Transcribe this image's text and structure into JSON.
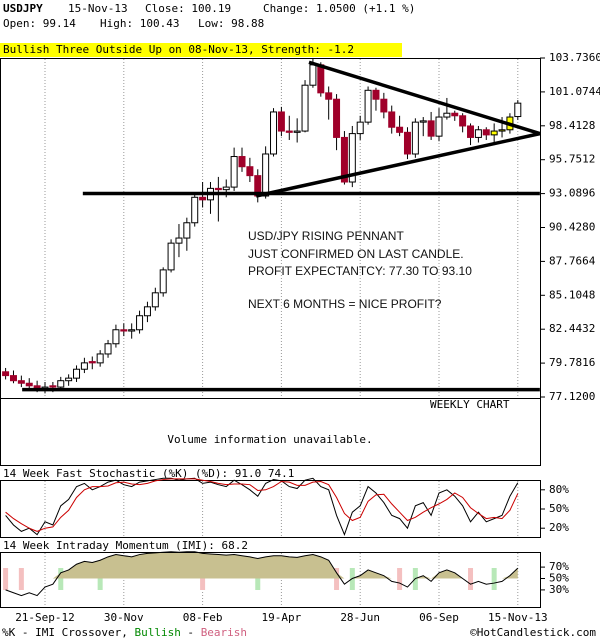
{
  "header": {
    "symbol": "USDJPY",
    "date": "15-Nov-13",
    "close": "Close: 100.19",
    "change": "Change: 1.0500 (+1.1 %)",
    "open": "Open: 99.14",
    "high": "High: 100.43",
    "low": "Low: 98.88"
  },
  "banner": "Bullish Three Outside Up on 08-Nov-13, Strength: -1.2",
  "chart_data": {
    "type": "candlestick",
    "categories": [
      null,
      null,
      null,
      null,
      null,
      "21-Sep-12",
      null,
      null,
      null,
      null,
      null,
      null,
      null,
      null,
      null,
      "30-Nov",
      null,
      null,
      null,
      null,
      null,
      null,
      null,
      null,
      null,
      "08-Feb",
      null,
      null,
      null,
      null,
      null,
      null,
      null,
      null,
      null,
      "19-Apr",
      null,
      null,
      null,
      null,
      null,
      null,
      null,
      null,
      null,
      "28-Jun",
      null,
      null,
      null,
      null,
      null,
      null,
      null,
      null,
      null,
      "06-Sep",
      null,
      null,
      null,
      null,
      null,
      null,
      null,
      null,
      null,
      "15-Nov-13"
    ],
    "candles": [
      [
        79.1,
        79.4,
        78.5,
        78.8
      ],
      [
        78.8,
        79.2,
        78.2,
        78.4
      ],
      [
        78.4,
        78.8,
        77.9,
        78.2
      ],
      [
        78.2,
        78.6,
        77.7,
        78.0
      ],
      [
        78.0,
        78.4,
        77.5,
        77.8
      ],
      [
        77.8,
        78.3,
        77.4,
        77.9
      ],
      [
        78.0,
        78.3,
        77.5,
        77.9
      ],
      [
        77.9,
        78.7,
        77.7,
        78.4
      ],
      [
        78.4,
        78.9,
        78.0,
        78.6
      ],
      [
        78.6,
        79.6,
        78.3,
        79.3
      ],
      [
        79.3,
        80.2,
        79.0,
        79.8
      ],
      [
        79.9,
        80.3,
        79.3,
        79.8
      ],
      [
        79.8,
        80.8,
        79.5,
        80.5
      ],
      [
        80.5,
        81.6,
        80.2,
        81.3
      ],
      [
        81.3,
        82.8,
        81.0,
        82.4
      ],
      [
        82.4,
        82.9,
        81.9,
        82.3
      ],
      [
        82.3,
        82.9,
        81.7,
        82.4
      ],
      [
        82.4,
        83.9,
        82.1,
        83.5
      ],
      [
        83.5,
        84.6,
        83.0,
        84.2
      ],
      [
        84.2,
        85.7,
        83.9,
        85.3
      ],
      [
        85.3,
        87.3,
        85.0,
        87.1
      ],
      [
        87.1,
        89.5,
        86.9,
        89.2
      ],
      [
        89.2,
        90.7,
        88.1,
        89.6
      ],
      [
        89.6,
        91.2,
        88.6,
        90.8
      ],
      [
        90.8,
        93.2,
        90.5,
        92.8
      ],
      [
        92.8,
        94.0,
        92.0,
        92.6
      ],
      [
        92.6,
        94.0,
        91.5,
        93.5
      ],
      [
        93.5,
        94.4,
        90.9,
        93.4
      ],
      [
        93.4,
        94.2,
        92.8,
        93.6
      ],
      [
        93.6,
        96.7,
        93.3,
        96.0
      ],
      [
        96.0,
        96.7,
        94.8,
        95.2
      ],
      [
        95.2,
        95.9,
        94.0,
        94.5
      ],
      [
        94.5,
        95.0,
        92.4,
        92.9
      ],
      [
        92.9,
        96.8,
        92.7,
        96.2
      ],
      [
        96.2,
        99.8,
        96.0,
        99.5
      ],
      [
        99.5,
        99.9,
        97.6,
        98.0
      ],
      [
        98.0,
        99.2,
        97.3,
        97.9
      ],
      [
        97.9,
        99.0,
        97.1,
        98.0
      ],
      [
        98.0,
        102.0,
        97.9,
        101.6
      ],
      [
        101.6,
        103.74,
        101.4,
        103.2
      ],
      [
        103.2,
        103.4,
        100.7,
        101.0
      ],
      [
        101.0,
        101.5,
        98.9,
        100.5
      ],
      [
        100.5,
        100.9,
        96.5,
        97.5
      ],
      [
        97.5,
        98.0,
        93.8,
        94.0
      ],
      [
        94.0,
        98.4,
        93.6,
        97.8
      ],
      [
        97.8,
        99.2,
        97.3,
        98.7
      ],
      [
        98.7,
        101.5,
        98.5,
        101.2
      ],
      [
        101.2,
        101.4,
        99.6,
        100.5
      ],
      [
        100.5,
        101.0,
        99.0,
        99.5
      ],
      [
        99.5,
        100.0,
        97.8,
        98.3
      ],
      [
        98.3,
        99.2,
        97.6,
        97.9
      ],
      [
        97.9,
        98.3,
        95.8,
        96.2
      ],
      [
        96.2,
        99.0,
        95.9,
        98.7
      ],
      [
        98.7,
        99.1,
        97.6,
        98.8
      ],
      [
        98.8,
        99.5,
        97.3,
        97.6
      ],
      [
        97.6,
        99.8,
        97.2,
        99.1
      ],
      [
        99.1,
        100.6,
        98.9,
        99.4
      ],
      [
        99.4,
        99.6,
        98.8,
        99.2
      ],
      [
        99.2,
        99.4,
        97.9,
        98.4
      ],
      [
        98.4,
        98.6,
        96.9,
        97.5
      ],
      [
        97.5,
        98.4,
        97.1,
        98.1
      ],
      [
        98.1,
        98.3,
        97.3,
        97.7
      ],
      [
        97.7,
        98.6,
        96.9,
        98.0
      ],
      [
        98.0,
        99.1,
        97.5,
        98.1
      ],
      [
        98.1,
        99.4,
        97.8,
        99.1
      ],
      [
        99.14,
        100.43,
        98.88,
        100.19
      ]
    ],
    "up_color": "#ffffff",
    "down_color": "#a0002a",
    "pattern_color": "#ffff00",
    "pattern_candles": [
      62,
      63,
      64
    ],
    "ylim": [
      77.12,
      103.736
    ],
    "yticks": [
      {
        "value": 103.736,
        "label": "103.7360"
      },
      101.0744,
      98.4128,
      95.7512,
      93.0896,
      {
        "value": 90.428,
        "label": "90.4280"
      },
      87.7664,
      85.1048,
      82.4432,
      79.7816,
      {
        "value": 77.12,
        "label": "77.1200"
      }
    ],
    "trendlines": [
      {
        "x": [
          38.5,
          67.8
        ],
        "y": [
          103.4,
          97.8
        ]
      },
      {
        "x": [
          31.8,
          67.8
        ],
        "y": [
          92.9,
          97.8
        ]
      },
      {
        "x": [
          9.8,
          67.8
        ],
        "y": [
          93.1,
          93.1
        ]
      },
      {
        "x": [
          2.1,
          67.8
        ],
        "y": [
          77.7,
          77.7
        ]
      }
    ],
    "annotations": [
      "USD/JPY RISING PENNANT",
      "JUST CONFIRMED ON LAST CANDLE.",
      "PROFIT EXPECTANTCY: 77.30 TO 93.10",
      "NEXT 6 MONTHS = NICE PROFIT?"
    ],
    "period_label": "WEEKLY CHART",
    "volume_note": "Volume information unavailable.",
    "stochastic": {
      "title": "14 Week Fast Stochastic (%K) (%D): 91.0 74.1",
      "ylim": [
        0,
        100
      ],
      "yticks": [
        {
          "value": 80,
          "label": "80%"
        },
        {
          "value": 50,
          "label": "50%"
        },
        {
          "value": 20,
          "label": "20%"
        }
      ],
      "series": [
        {
          "color": "#000000",
          "values": [
            40,
            25,
            15,
            20,
            10,
            30,
            25,
            55,
            65,
            85,
            90,
            80,
            85,
            92,
            95,
            88,
            85,
            92,
            94,
            96,
            98,
            98,
            95,
            97,
            98,
            90,
            92,
            88,
            85,
            95,
            88,
            80,
            70,
            90,
            96,
            94,
            85,
            82,
            95,
            98,
            85,
            80,
            40,
            10,
            45,
            55,
            85,
            75,
            60,
            40,
            35,
            20,
            55,
            60,
            40,
            75,
            80,
            70,
            55,
            30,
            45,
            30,
            35,
            40,
            70,
            91.0
          ]
        },
        {
          "color": "#cc0000",
          "values": [
            45,
            35,
            27,
            20,
            15,
            20,
            22,
            37,
            48,
            68,
            80,
            85,
            85,
            86,
            91,
            92,
            89,
            88,
            90,
            94,
            96,
            97,
            97,
            97,
            97,
            95,
            93,
            90,
            88,
            89,
            89,
            88,
            79,
            80,
            85,
            93,
            92,
            87,
            87,
            92,
            93,
            88,
            68,
            43,
            32,
            37,
            62,
            72,
            73,
            58,
            45,
            32,
            37,
            45,
            52,
            58,
            65,
            75,
            68,
            52,
            43,
            35,
            37,
            35,
            48,
            74.1
          ]
        }
      ]
    },
    "imi": {
      "title": "14 Week Intraday Momentum (IMI): 68.2",
      "ylim": [
        0,
        100
      ],
      "color": "#c8c090",
      "yticks": [
        {
          "value": 70,
          "label": "70%"
        },
        {
          "value": 50,
          "label": "50%"
        },
        {
          "value": 30,
          "label": "30%"
        }
      ],
      "values": [
        30,
        25,
        20,
        25,
        20,
        35,
        40,
        60,
        65,
        75,
        80,
        78,
        82,
        88,
        92,
        90,
        88,
        92,
        94,
        95,
        96,
        97,
        96,
        97,
        97,
        94,
        93,
        92,
        91,
        92,
        90,
        88,
        85,
        88,
        90,
        90,
        88,
        87,
        90,
        92,
        88,
        82,
        60,
        40,
        50,
        55,
        65,
        60,
        55,
        45,
        42,
        35,
        50,
        55,
        45,
        60,
        65,
        60,
        50,
        40,
        45,
        40,
        42,
        45,
        55,
        68.2
      ],
      "bullish_candles": [
        7,
        12,
        32,
        44,
        52,
        62
      ],
      "bearish_candles": [
        0,
        2,
        25,
        42,
        50,
        59
      ],
      "bullish_color": "#b8e8b8",
      "bearish_color": "#f4c0c0"
    }
  },
  "footer": {
    "prefix": "%K - IMI Crossover, ",
    "bullish": "Bullish",
    "separator": " - ",
    "bearish": "Bearish",
    "credit": "©HotCandlestick.com"
  }
}
